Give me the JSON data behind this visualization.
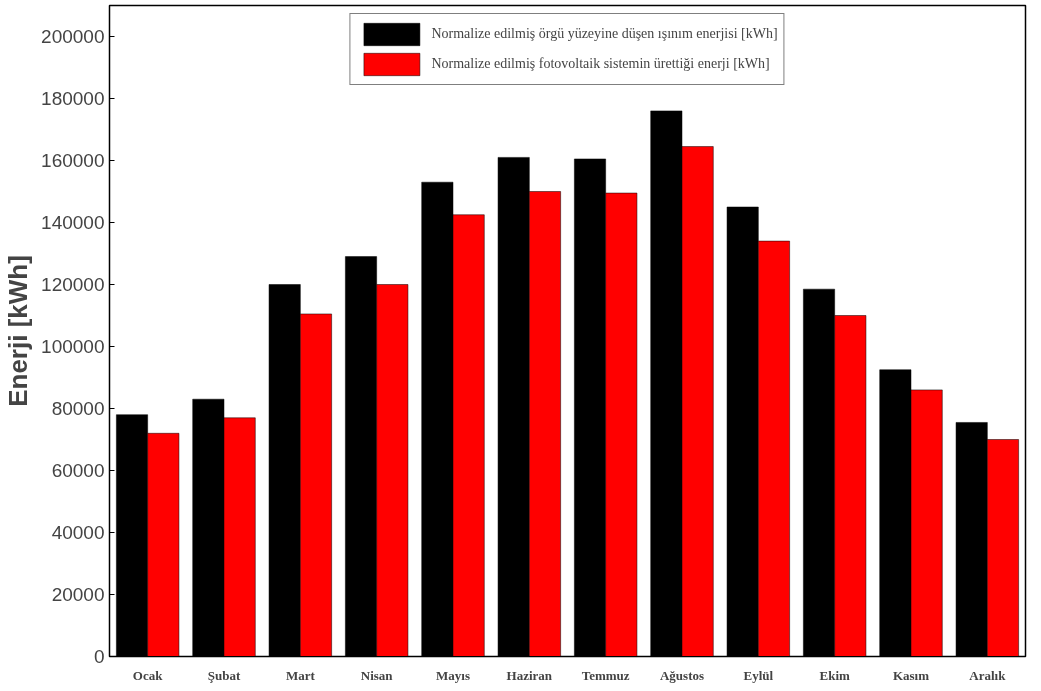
{
  "chart_data": {
    "type": "bar",
    "ylabel": "Enerji [kWh]",
    "categories": [
      "Ocak",
      "Şubat",
      "Mart",
      "Nisan",
      "Mayıs",
      "Haziran",
      "Temmuz",
      "Ağustos",
      "Eylül",
      "Ekim",
      "Kasım",
      "Aralık"
    ],
    "series": [
      {
        "name": "Normalize edilmiş örgü yüzeyine düşen ışınım enerjisi [kWh]",
        "color": "#000000",
        "values": [
          78000,
          83000,
          120000,
          129000,
          153000,
          161000,
          160500,
          176000,
          145000,
          118500,
          92500,
          75500
        ]
      },
      {
        "name": "Normalize edilmiş fotovoltaik sistemin ürettiği enerji [kWh]",
        "color": "#ff0000",
        "values": [
          72000,
          77000,
          110500,
          120000,
          142500,
          150000,
          149500,
          164500,
          134000,
          110000,
          86000,
          70000
        ]
      }
    ],
    "ylim": [
      0,
      210000
    ],
    "yticks": [
      0,
      20000,
      40000,
      60000,
      80000,
      100000,
      120000,
      140000,
      160000,
      180000,
      200000
    ],
    "grid": false,
    "legend": "top"
  }
}
